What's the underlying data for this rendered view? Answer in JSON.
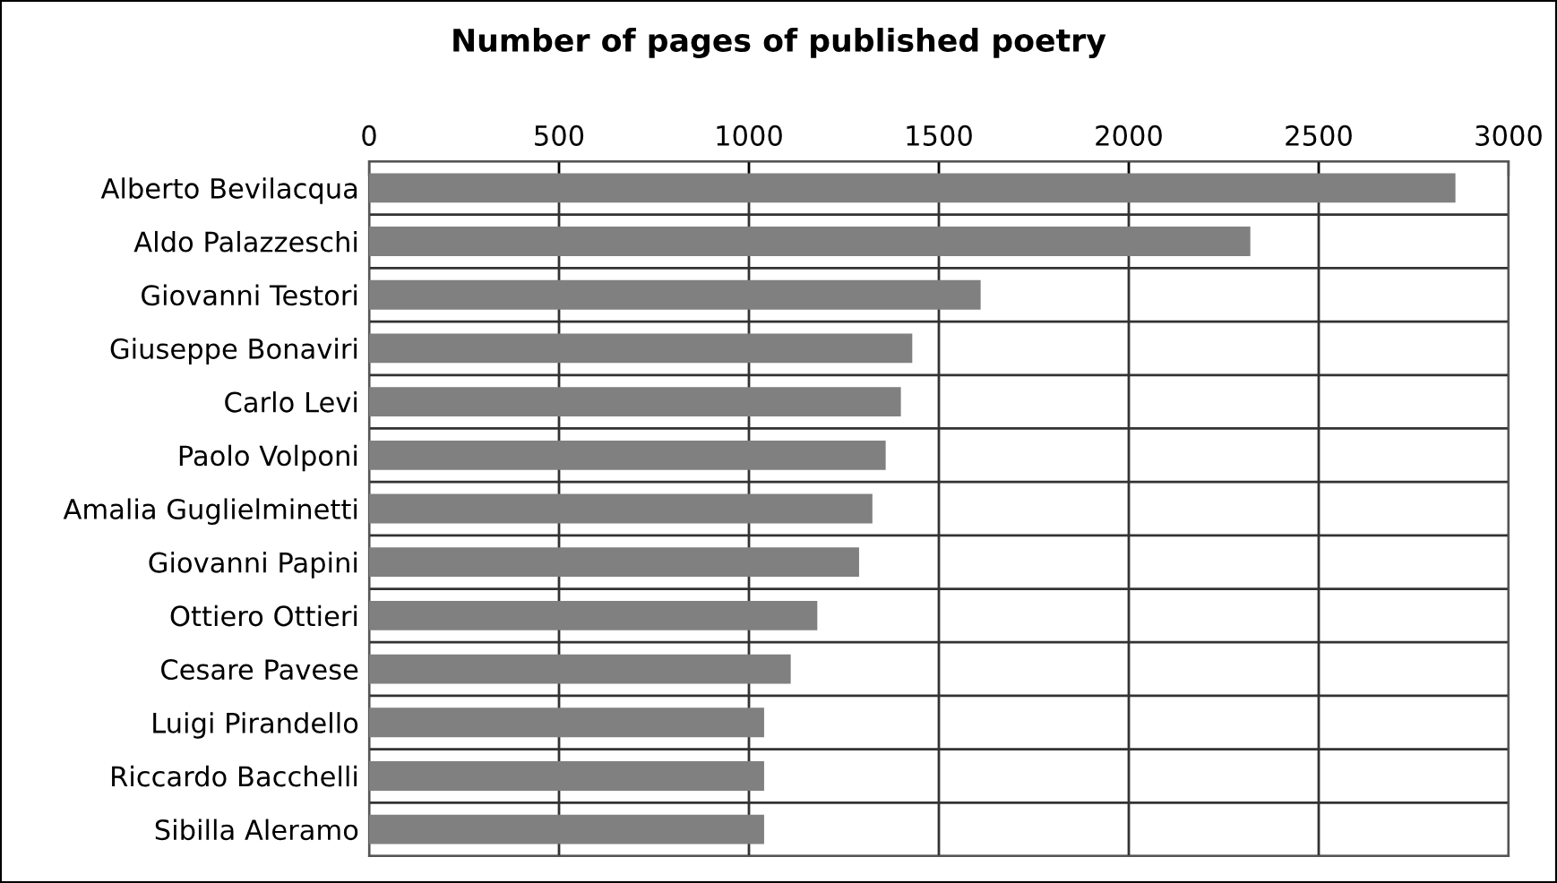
{
  "chart_data": {
    "type": "bar",
    "orientation": "horizontal",
    "title": "Number of pages of published poetry",
    "categories": [
      "Alberto Bevilacqua",
      "Aldo Palazzeschi",
      "Giovanni Testori",
      "Giuseppe Bonaviri",
      "Carlo Levi",
      "Paolo Volponi",
      "Amalia Guglielminetti",
      "Giovanni Papini",
      "Ottiero Ottieri",
      "Cesare Pavese",
      "Luigi Pirandello",
      "Riccardo Bacchelli",
      "Sibilla Aleramo"
    ],
    "values": [
      2860,
      2320,
      1610,
      1430,
      1400,
      1360,
      1325,
      1290,
      1180,
      1110,
      1040,
      1040,
      1040
    ],
    "color": "#808080",
    "xlim": [
      0,
      3000
    ],
    "xticks": [
      0,
      500,
      1000,
      1500,
      2000,
      2500,
      3000
    ],
    "grid": true
  }
}
